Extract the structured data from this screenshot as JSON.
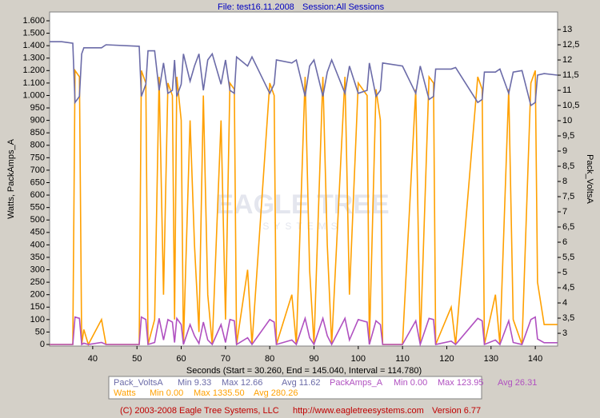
{
  "chart_data": {
    "type": "line",
    "title": {
      "file": "File: test16.11.2008",
      "session": "Session:All Sessions"
    },
    "watermark": {
      "main": "EAGLE TREE",
      "sub": "SYSTEMS"
    },
    "x_label": "Seconds (Start = 30.260, End = 145.040, Interval = 114.780)",
    "y_label": "Watts, PackAmps_A",
    "y2_label": "Pack_VoltsA",
    "footer": [
      "(C) 2003-2008 Eagle Tree Systems, LLC",
      "http://www.eagletreesystems.com",
      "Version 6.77"
    ],
    "xlim": [
      30.26,
      145.04
    ],
    "xticks": [
      40,
      50,
      60,
      70,
      80,
      90,
      100,
      110,
      120,
      130,
      140
    ],
    "ylim": [
      0,
      1600
    ],
    "yticks": [
      0,
      50,
      100,
      150,
      200,
      250,
      300,
      350,
      400,
      450,
      500,
      550,
      600,
      650,
      700,
      750,
      800,
      850,
      900,
      950,
      {
        "value": 1000,
        "label": "1.000"
      },
      {
        "value": 1100,
        "label": "1.100"
      },
      {
        "value": 1200,
        "label": "1.200"
      },
      {
        "value": 1300,
        "label": "1.300"
      },
      {
        "value": 1400,
        "label": "1.400"
      },
      {
        "value": 1500,
        "label": "1.500"
      },
      {
        "value": 1600,
        "label": "1.600"
      }
    ],
    "y2lim": [
      2.58,
      13.58
    ],
    "y2ticks": [
      3,
      {
        "value": 3.5,
        "label": "3,5"
      },
      4,
      {
        "value": 4.5,
        "label": "4,5"
      },
      5,
      {
        "value": 5.5,
        "label": "5,5"
      },
      6,
      {
        "value": 6.5,
        "label": "6,5"
      },
      7,
      {
        "value": 7.5,
        "label": "7,5"
      },
      8,
      {
        "value": 8.5,
        "label": "8,5"
      },
      9,
      {
        "value": 9.5,
        "label": "9,5"
      },
      10,
      {
        "value": 10.5,
        "label": "10,5"
      },
      11,
      {
        "value": 11.5,
        "label": "11,5"
      },
      12,
      {
        "value": 12.5,
        "label": "12,5"
      },
      13
    ],
    "x": [
      30.3,
      33,
      35.5,
      36,
      37,
      37.5,
      38,
      39,
      42,
      43,
      50.5,
      51,
      52,
      52.5,
      54,
      55,
      56,
      57,
      58,
      58.5,
      59,
      60,
      60.5,
      62,
      63,
      64,
      65,
      66,
      67,
      69,
      70,
      71,
      72,
      72.5,
      75,
      76,
      80,
      81,
      81.5,
      85,
      86,
      88,
      89,
      90,
      92,
      93,
      94,
      97,
      98,
      100,
      102,
      102.5,
      104,
      105,
      105.5,
      110,
      113,
      114,
      116,
      117,
      117.5,
      121,
      122,
      127,
      128,
      128.5,
      131,
      132,
      134,
      135,
      137,
      139,
      140,
      140.5,
      142,
      145
    ],
    "series": [
      {
        "name": "Pack_VoltsA",
        "color": "#6b6ba8",
        "axis": "y2",
        "legend_stats": [
          "Min 9.33",
          "Max 12.66",
          "Avg 11.62"
        ],
        "values": [
          12.6,
          12.6,
          12.55,
          10.6,
          10.8,
          12.2,
          12.4,
          12.4,
          12.4,
          12.5,
          12.45,
          10.8,
          11.2,
          12.3,
          12.3,
          11.0,
          11.9,
          10.9,
          11.0,
          12.0,
          10.8,
          11.2,
          12.2,
          11.3,
          11.8,
          12.2,
          11.0,
          12.0,
          12.2,
          11.2,
          12.0,
          11.0,
          10.9,
          12.1,
          11.8,
          12.1,
          10.9,
          11.2,
          12.0,
          11.9,
          12.0,
          10.8,
          11.8,
          12.0,
          10.8,
          11.6,
          12.0,
          10.9,
          11.8,
          10.9,
          11.0,
          11.9,
          10.8,
          11.0,
          11.9,
          11.8,
          10.9,
          11.8,
          10.7,
          10.8,
          11.7,
          11.7,
          11.75,
          10.6,
          10.7,
          11.6,
          11.6,
          11.7,
          10.9,
          11.6,
          11.65,
          10.5,
          10.6,
          11.5,
          11.55,
          11.5
        ]
      },
      {
        "name": "Watts",
        "color": "#ffa000",
        "legend_stats": [
          "Min 0.00",
          "Max 1335.50",
          "Avg 280.26"
        ],
        "values": [
          0,
          0,
          0,
          1200,
          1150,
          0,
          60,
          0,
          100,
          0,
          0,
          1200,
          1100,
          0,
          100,
          1150,
          200,
          1100,
          1000,
          100,
          1150,
          900,
          0,
          900,
          400,
          50,
          1000,
          200,
          0,
          900,
          100,
          1100,
          1050,
          0,
          300,
          0,
          1100,
          1000,
          0,
          200,
          0,
          1150,
          300,
          0,
          1150,
          400,
          0,
          1150,
          200,
          1100,
          1000,
          0,
          1050,
          900,
          0,
          0,
          1050,
          0,
          1150,
          1100,
          0,
          150,
          0,
          1150,
          1050,
          0,
          200,
          0,
          1050,
          100,
          0,
          1100,
          1200,
          250,
          80,
          80
        ]
      },
      {
        "name": "PackAmps_A",
        "color": "#b050c0",
        "legend_stats": [
          "Min 0.00",
          "Max 123.95",
          "Avg 26.31"
        ],
        "values": [
          0,
          0,
          0,
          110,
          105,
          0,
          5,
          0,
          8,
          0,
          0,
          110,
          100,
          0,
          8,
          105,
          18,
          100,
          90,
          8,
          105,
          80,
          0,
          80,
          35,
          4,
          90,
          18,
          0,
          80,
          8,
          100,
          95,
          0,
          27,
          0,
          100,
          90,
          0,
          18,
          0,
          105,
          27,
          0,
          105,
          35,
          0,
          105,
          18,
          100,
          90,
          0,
          95,
          80,
          0,
          0,
          95,
          0,
          105,
          100,
          0,
          13,
          0,
          105,
          95,
          0,
          18,
          0,
          95,
          8,
          0,
          100,
          110,
          22,
          7,
          7
        ]
      }
    ]
  }
}
